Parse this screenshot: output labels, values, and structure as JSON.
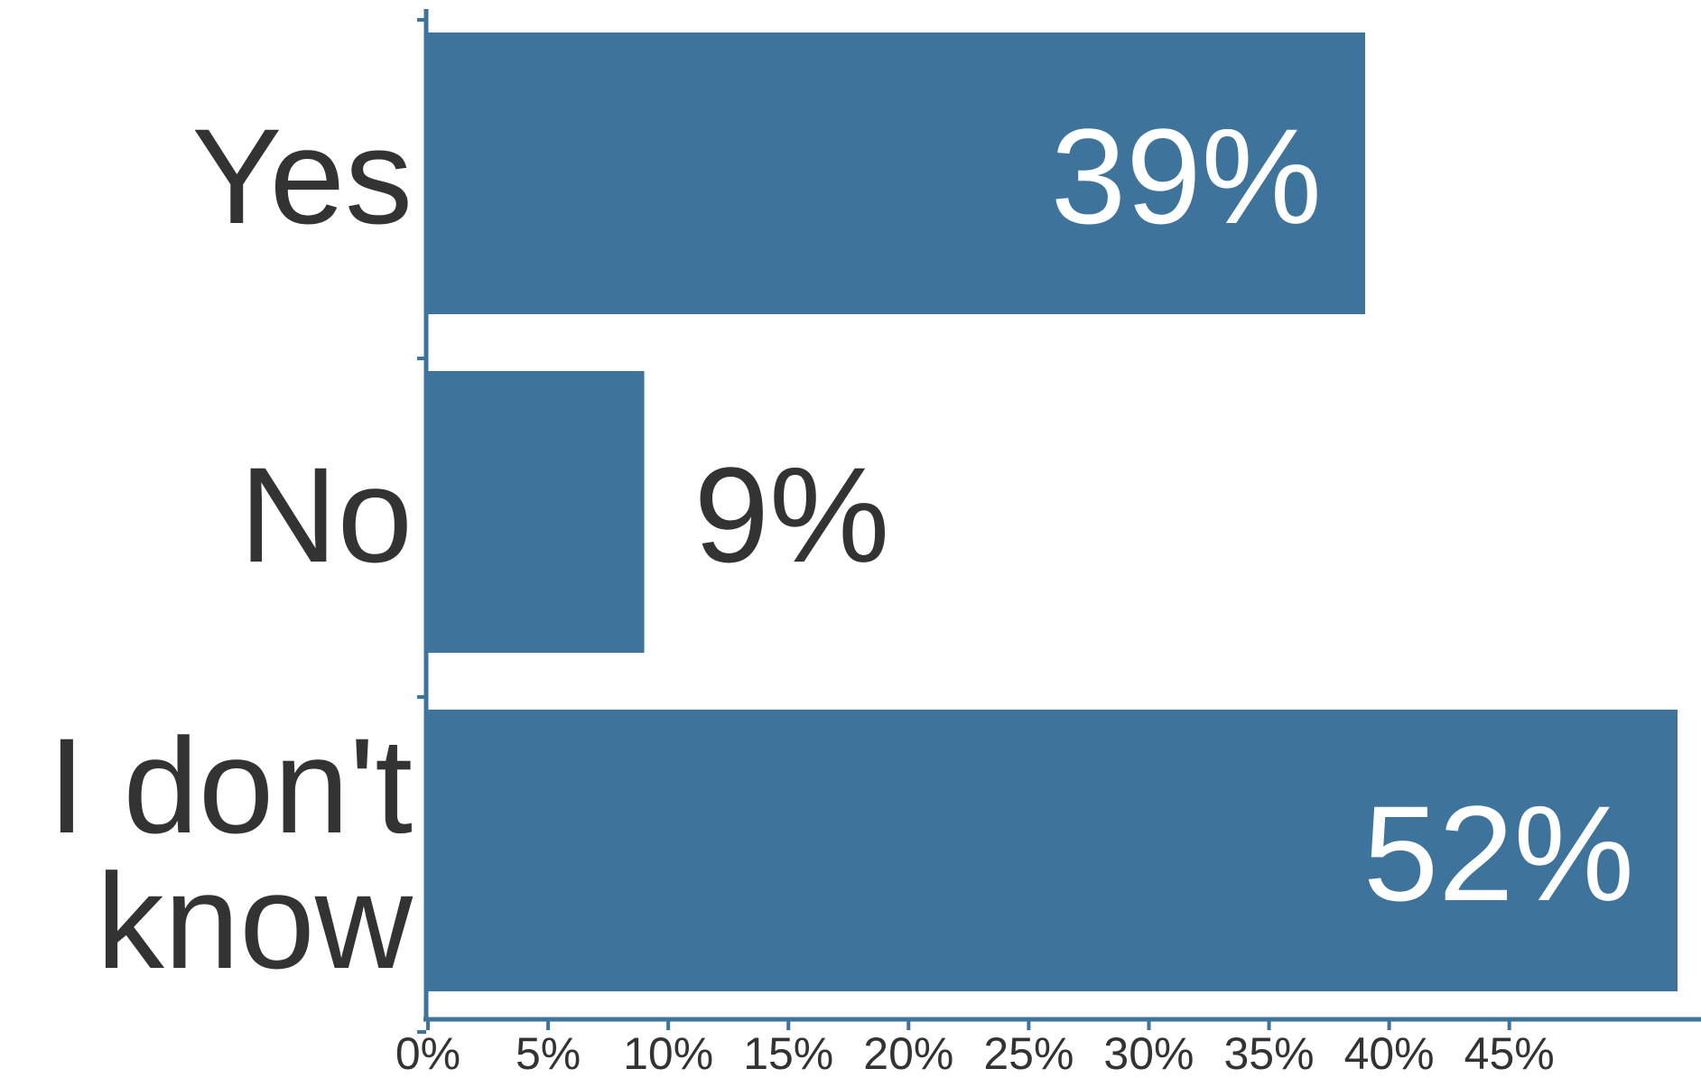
{
  "chart_data": {
    "type": "bar",
    "orientation": "horizontal",
    "categories": [
      "Yes",
      "No",
      "I don't know"
    ],
    "category_lines": [
      [
        "Yes"
      ],
      [
        "No"
      ],
      [
        "I don't",
        "know"
      ]
    ],
    "values": [
      39,
      9,
      52
    ],
    "data_labels": [
      "39%",
      "9%",
      "52%"
    ],
    "xticks": [
      "0%",
      "5%",
      "10%",
      "15%",
      "20%",
      "25%",
      "30%",
      "35%",
      "40%",
      "45%"
    ],
    "xtick_values": [
      0,
      5,
      10,
      15,
      20,
      25,
      30,
      35,
      40,
      45
    ],
    "xlim": [
      0,
      52
    ],
    "title": "",
    "xlabel": "",
    "ylabel": "",
    "grid": false
  },
  "colors": {
    "bar": "#3e739c",
    "axis": "#3e739c",
    "text": "#333333",
    "label_inside": "#ffffff",
    "label_outside": "#333333"
  }
}
